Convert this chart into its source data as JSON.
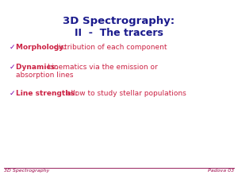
{
  "title_line1": "3D Spectrography:",
  "title_line2": "II  -  The tracers",
  "title_color": "#1a1a8c",
  "bullet_char": "✓",
  "bullet_color": "#7700aa",
  "bullet_items": [
    {
      "key": "Morphology: ",
      "rest": "distribution of each component"
    },
    {
      "key": "Dynamics: ",
      "rest": "kinematics via the emission or\nabsorption lines"
    },
    {
      "key": "Line strengths: ",
      "rest": "allow to study stellar populations"
    }
  ],
  "bullet_color_red": "#cc2244",
  "footer_left": "3D Spectrography",
  "footer_right": "Padova 03",
  "footer_color": "#990044",
  "footer_line_color": "#880044",
  "bg_color": "#ffffff",
  "title_fontsize": 9.5,
  "subtitle_fontsize": 9.0,
  "bullet_fontsize": 6.5,
  "footer_fontsize": 4.5
}
